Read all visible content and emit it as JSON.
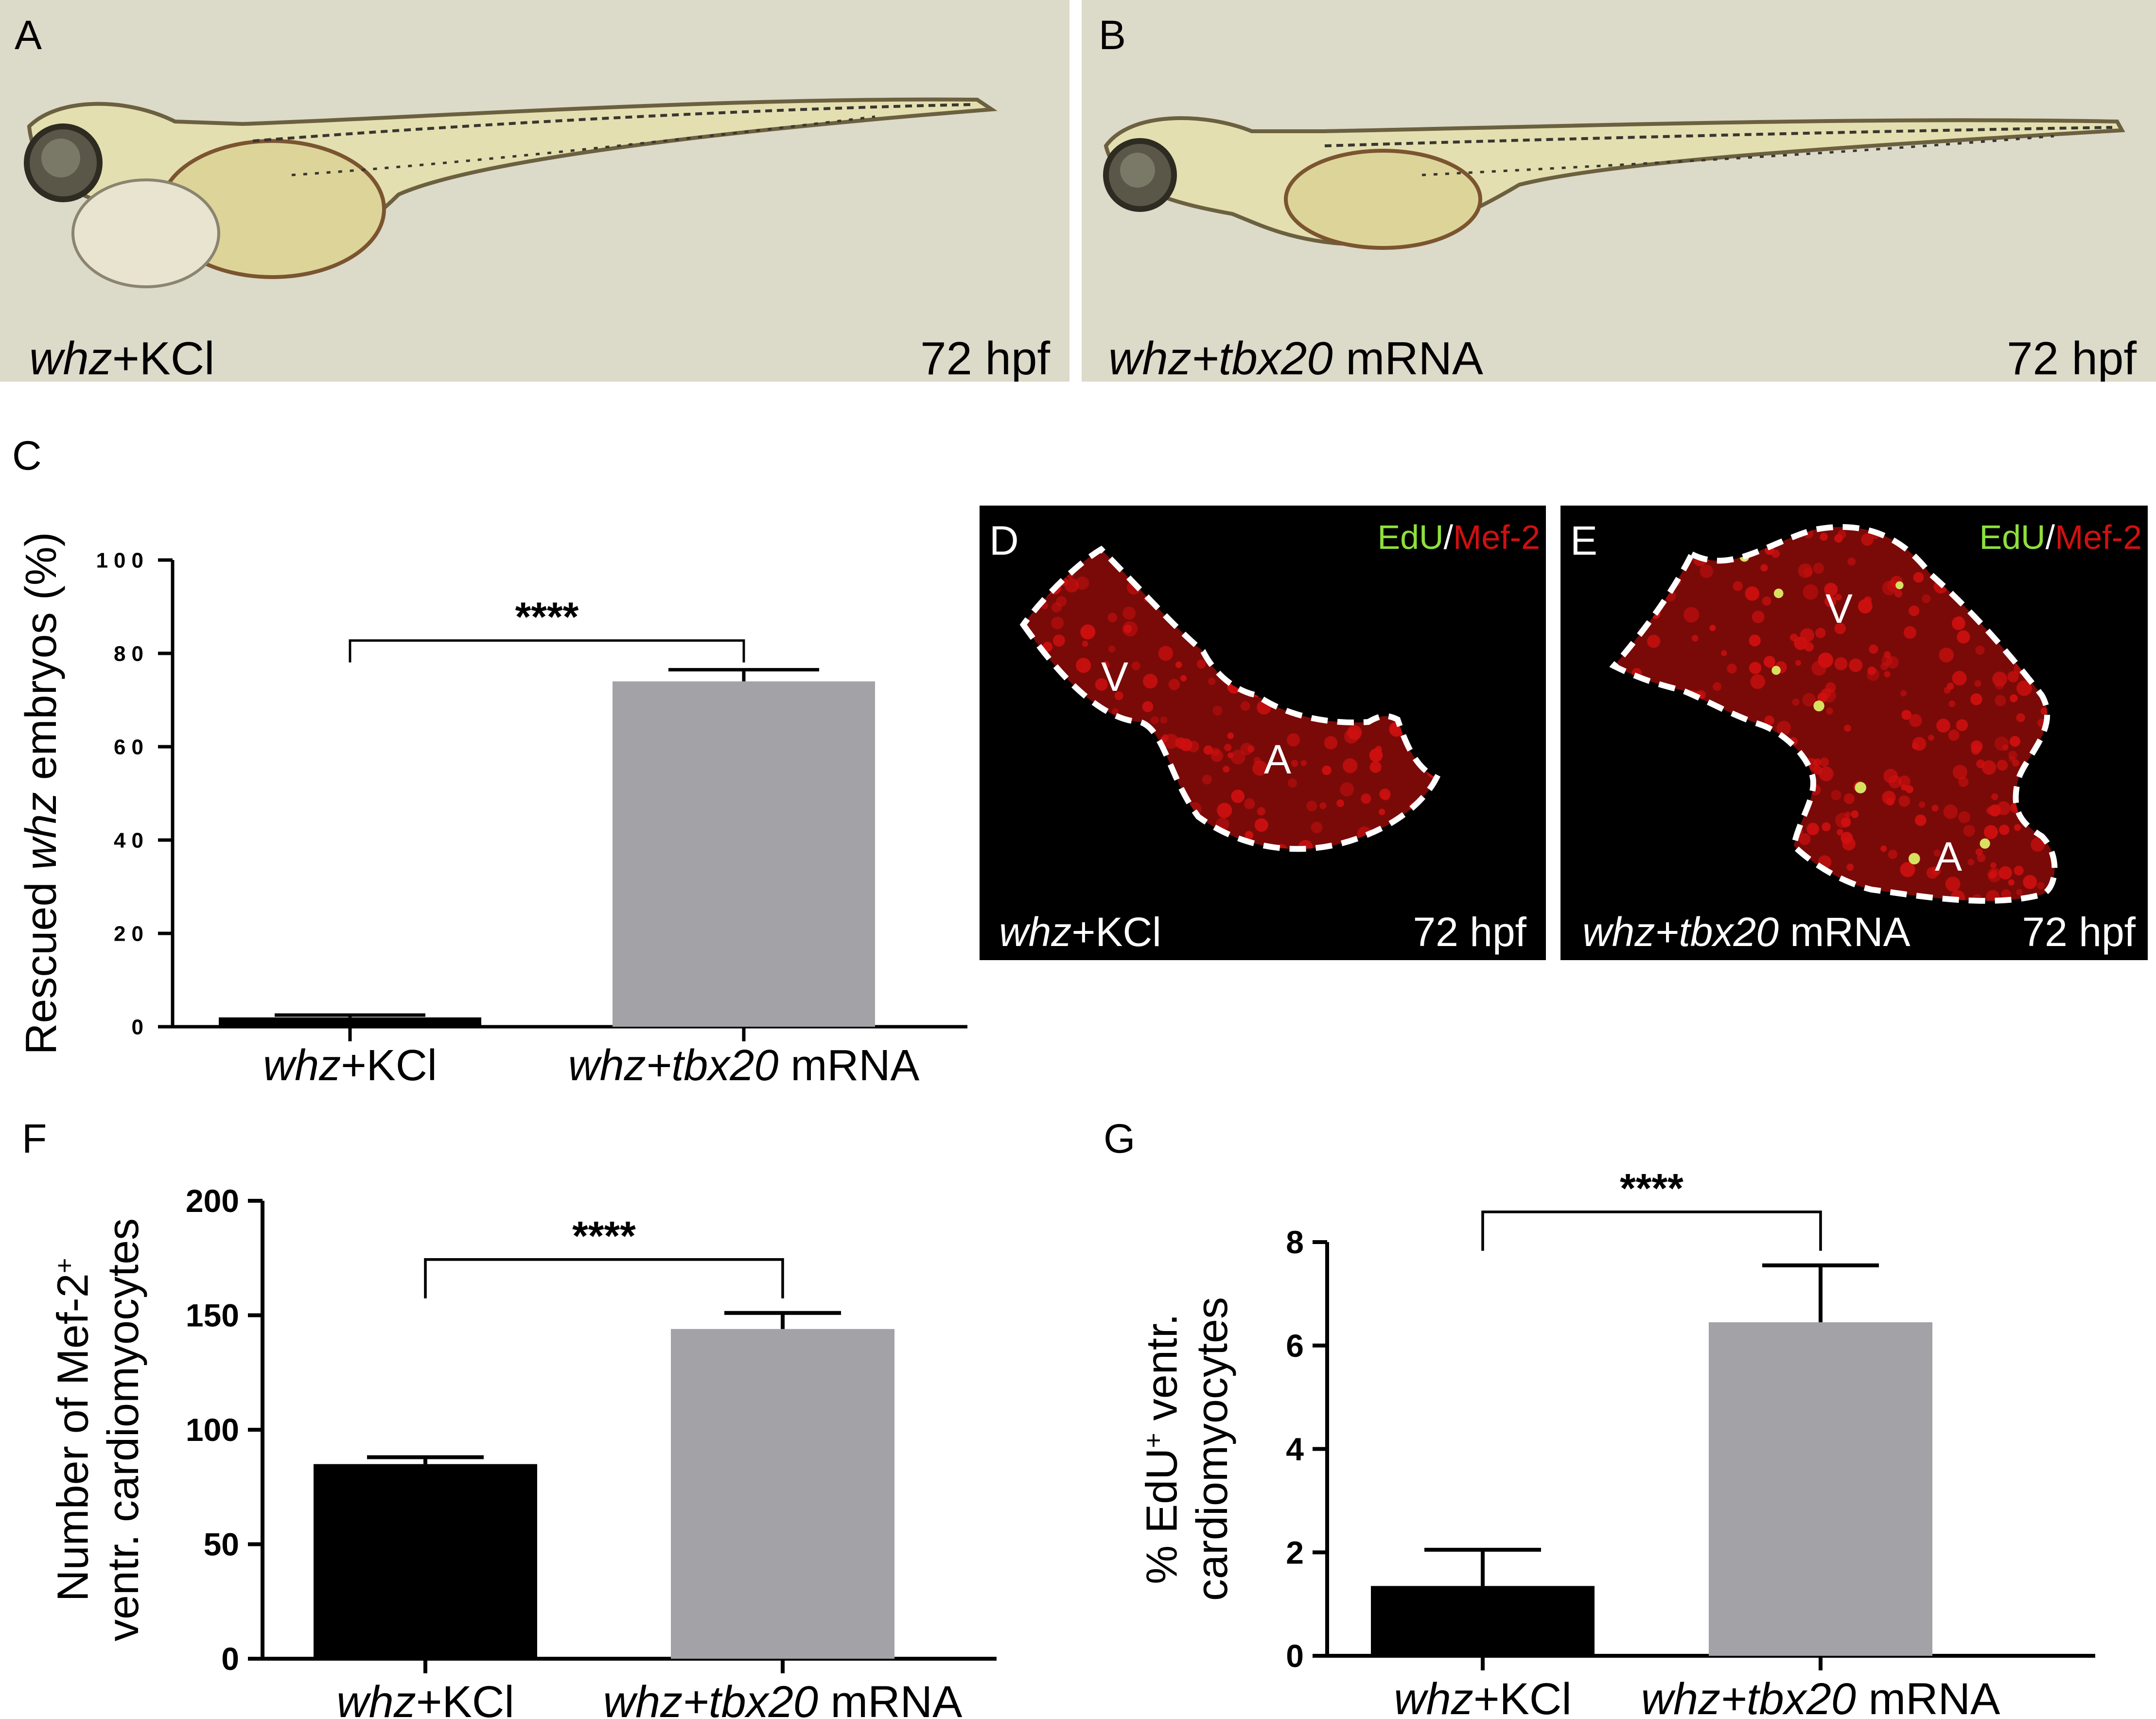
{
  "panels": {
    "A": {
      "letter": "A",
      "genotype": "whz",
      "treatment": "+KCl",
      "stage": "72 hpf",
      "image": "zebrafish-larva-brightfield-pericardial-edema"
    },
    "B": {
      "letter": "B",
      "genotype": "whz",
      "treatment_prefix": "+",
      "treatment_gene": "tbx20",
      "treatment_suffix": " mRNA",
      "stage": "72 hpf",
      "image": "zebrafish-larva-brightfield-rescued"
    },
    "D": {
      "letter": "D",
      "stain_green": "EdU",
      "stain_sep": "/",
      "stain_red": "Mef-2",
      "label_v": "V",
      "label_a": "A",
      "genotype": "whz",
      "treatment": "+KCl",
      "stage": "72 hpf",
      "image": "heart-confocal-edu-mef2"
    },
    "E": {
      "letter": "E",
      "stain_green": "EdU",
      "stain_sep": "/",
      "stain_red": "Mef-2",
      "label_v": "V",
      "label_a": "A",
      "genotype": "whz",
      "treatment_prefix": "+",
      "treatment_gene": "tbx20",
      "treatment_suffix": " mRNA",
      "stage": "72 hpf",
      "image": "heart-confocal-edu-mef2-rescued"
    }
  },
  "colors": {
    "control_bar": "#000000",
    "rescue_bar": "#a2a2a7",
    "brightfield_bg": "#dcdac8",
    "edu_green": "#8ee03c",
    "mef2_red": "#d01010"
  },
  "chart_data": [
    {
      "panel": "C",
      "type": "bar",
      "categories": [
        {
          "genotype": "whz",
          "prefix": "+",
          "gene": "",
          "suffix": "KCl"
        },
        {
          "genotype": "whz",
          "prefix": "+",
          "gene": "tbx20",
          "suffix": " mRNA"
        }
      ],
      "values": [
        2,
        74
      ],
      "errors": [
        0.5,
        2.5
      ],
      "ylabel_prefix": "Rescued ",
      "ylabel_italic": "whz",
      "ylabel_suffix": " embryos (%)",
      "ylim": [
        0,
        100
      ],
      "yticks": [
        0,
        20,
        40,
        60,
        80,
        100
      ],
      "significance": "****"
    },
    {
      "panel": "F",
      "type": "bar",
      "categories": [
        {
          "genotype": "whz",
          "prefix": "+",
          "gene": "",
          "suffix": "KCl"
        },
        {
          "genotype": "whz",
          "prefix": "+",
          "gene": "tbx20",
          "suffix": " mRNA"
        }
      ],
      "values": [
        85,
        144
      ],
      "errors": [
        3,
        7
      ],
      "ylabel_line1_prefix": "Number of Mef-2",
      "ylabel_line1_sup": "+",
      "ylabel_line2": "ventr. cardiomyocytes",
      "ylim": [
        0,
        200
      ],
      "yticks": [
        0,
        50,
        100,
        150,
        200
      ],
      "significance": "****"
    },
    {
      "panel": "G",
      "type": "bar",
      "categories": [
        {
          "genotype": "whz",
          "prefix": "+",
          "gene": "",
          "suffix": "KCl"
        },
        {
          "genotype": "whz",
          "prefix": "+",
          "gene": "tbx20",
          "suffix": " mRNA"
        }
      ],
      "values": [
        1.35,
        6.45
      ],
      "errors": [
        0.7,
        1.1
      ],
      "ylabel_line1_prefix": "% EdU",
      "ylabel_line1_sup": "+",
      "ylabel_line1_suffix": " ventr.",
      "ylabel_line2": "cardiomyocytes",
      "ylim": [
        0,
        8
      ],
      "yticks": [
        0,
        2,
        4,
        6,
        8
      ],
      "significance": "****"
    }
  ]
}
